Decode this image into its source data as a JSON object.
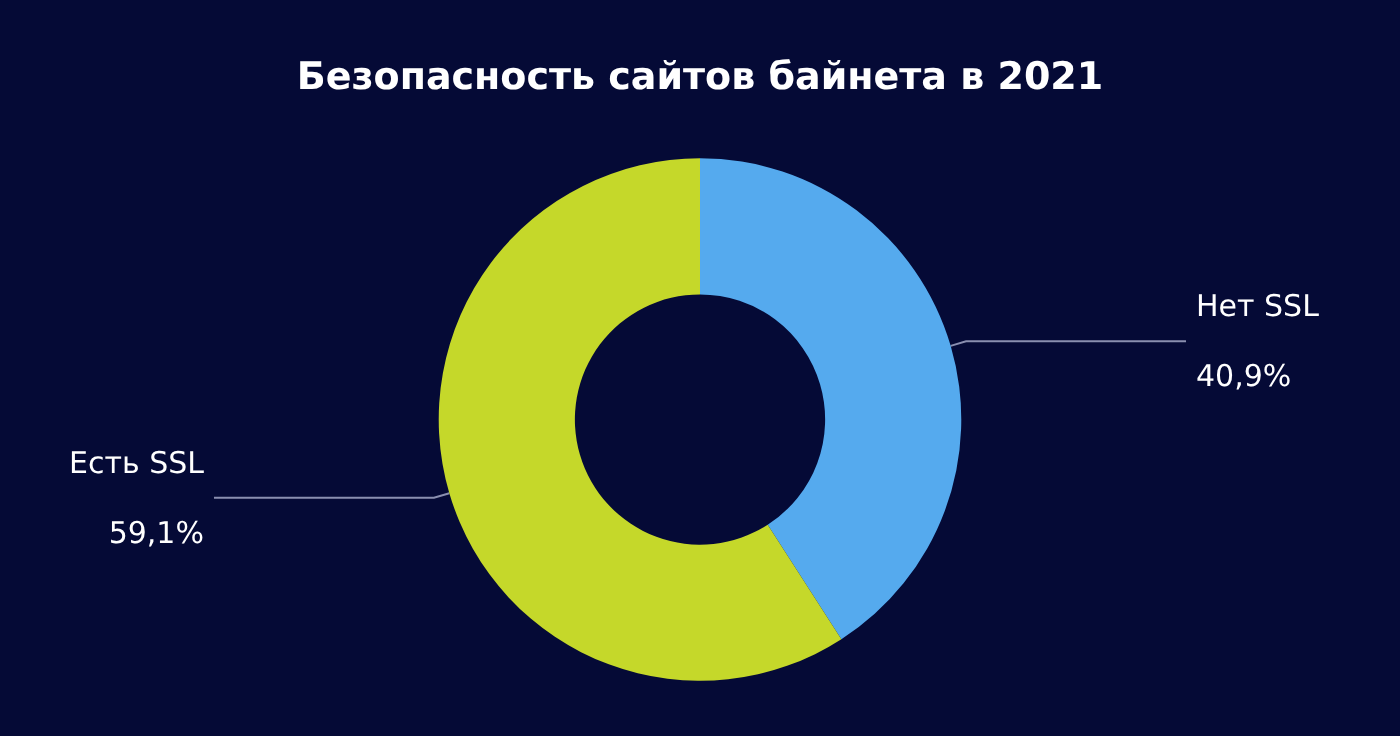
{
  "chart_data": {
    "type": "donut",
    "title": "Безопасность сайтов байнета в 2021",
    "categories": [
      "Нет SSL",
      "Есть SSL"
    ],
    "values": [
      40.9,
      59.1
    ],
    "colors": [
      "#55aaee",
      "#c5d82a"
    ],
    "value_labels": [
      "40,9%",
      "59,1%"
    ],
    "legend": false
  }
}
